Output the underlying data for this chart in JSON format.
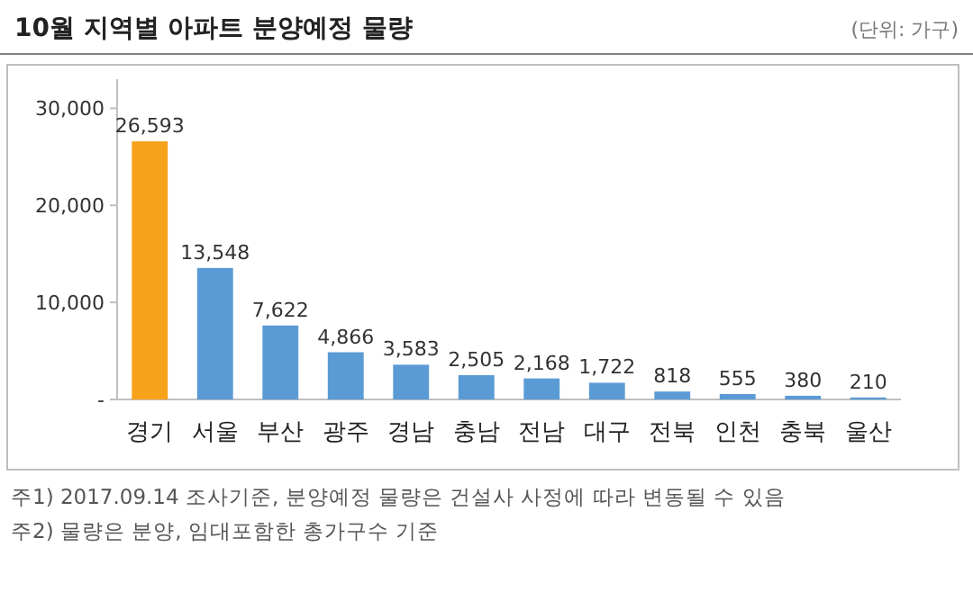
{
  "chart_data": {
    "type": "bar",
    "title": "10월 지역별 아파트 분양예정 물량",
    "subtitle": "(단위: 가구)",
    "categories": [
      "경기",
      "서울",
      "부산",
      "광주",
      "경남",
      "충남",
      "전남",
      "대구",
      "전북",
      "인천",
      "충북",
      "울산"
    ],
    "values": [
      26593,
      13548,
      7622,
      4866,
      3583,
      2505,
      2168,
      1722,
      818,
      555,
      380,
      210
    ],
    "colors": [
      "#f7a21b",
      "#5b9bd5",
      "#5b9bd5",
      "#5b9bd5",
      "#5b9bd5",
      "#5b9bd5",
      "#5b9bd5",
      "#5b9bd5",
      "#5b9bd5",
      "#5b9bd5",
      "#5b9bd5",
      "#5b9bd5"
    ],
    "ylim": [
      0,
      33000
    ],
    "yticks": [
      {
        "value": 0,
        "label": "-"
      },
      {
        "value": 10000,
        "label": "10,000"
      },
      {
        "value": 20000,
        "label": "20,000"
      },
      {
        "value": 30000,
        "label": "30,000"
      }
    ],
    "value_labels": [
      "26,593",
      "13,548",
      "7,622",
      "4,866",
      "3,583",
      "2,505",
      "2,168",
      "1,722",
      "818",
      "555",
      "380",
      "210"
    ],
    "annotations": [
      "주1) 2017.09.14 조사기준, 분양예정 물량은 건설사 사정에 따라 변동될 수 있음",
      "주2) 물량은 분양, 임대포함한 총가구수 기준"
    ]
  }
}
